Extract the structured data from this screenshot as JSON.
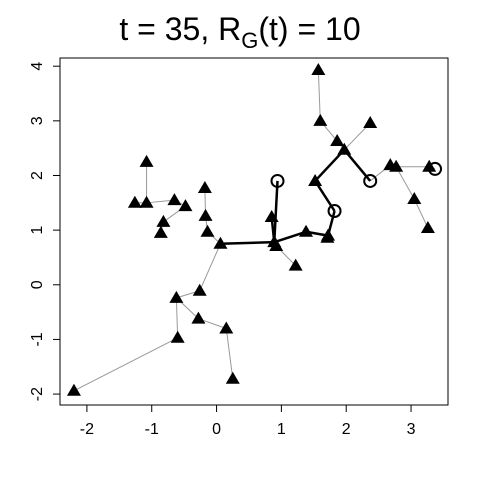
{
  "chart_data": {
    "type": "network",
    "title_parts": [
      "t = 35, R",
      "G",
      "(t) = 10"
    ],
    "x": [
      1.57,
      1.6,
      2.37,
      1.86,
      1.97,
      -1.08,
      2.68,
      2.77,
      3.28,
      1.52,
      -0.18,
      -1.26,
      -1.08,
      -0.65,
      -0.48,
      3.05,
      -0.82,
      -0.86,
      -0.17,
      -0.14,
      0.85,
      3.26,
      1.38,
      1.72,
      1.71,
      0.06,
      0.89,
      0.92,
      1.22,
      -0.62,
      -0.26,
      -0.28,
      0.15,
      -0.6,
      0.25,
      -2.2,
      0.94,
      1.82,
      2.37,
      3.37
    ],
    "y": [
      3.93,
      3.0,
      2.96,
      2.63,
      2.47,
      2.25,
      2.19,
      2.16,
      2.16,
      1.9,
      1.77,
      1.5,
      1.5,
      1.55,
      1.44,
      1.57,
      1.15,
      0.95,
      1.26,
      0.97,
      1.24,
      1.04,
      0.97,
      0.9,
      0.86,
      0.75,
      0.78,
      0.71,
      0.35,
      -0.24,
      -0.11,
      -0.62,
      -0.8,
      -0.97,
      -1.72,
      -1.94,
      1.9,
      1.35,
      1.9,
      2.12
    ],
    "markers": [
      "triangle",
      "triangle",
      "triangle",
      "triangle",
      "triangle",
      "triangle",
      "triangle",
      "triangle",
      "triangle",
      "triangle",
      "triangle",
      "triangle",
      "triangle",
      "triangle",
      "triangle",
      "triangle",
      "triangle",
      "triangle",
      "triangle",
      "triangle",
      "triangle",
      "triangle",
      "triangle",
      "triangle",
      "triangle",
      "triangle",
      "triangle",
      "triangle",
      "triangle",
      "triangle",
      "triangle",
      "triangle",
      "triangle",
      "triangle",
      "triangle",
      "triangle",
      "circle",
      "circle",
      "circle",
      "circle"
    ],
    "edges": [
      [
        0,
        1
      ],
      [
        1,
        3
      ],
      [
        3,
        4
      ],
      [
        2,
        4
      ],
      [
        6,
        7
      ],
      [
        7,
        8
      ],
      [
        8,
        39
      ],
      [
        7,
        15
      ],
      [
        15,
        21
      ],
      [
        24,
        23
      ],
      [
        26,
        27
      ],
      [
        27,
        28
      ],
      [
        5,
        12
      ],
      [
        11,
        12
      ],
      [
        12,
        13
      ],
      [
        13,
        14
      ],
      [
        14,
        16
      ],
      [
        16,
        17
      ],
      [
        10,
        18
      ],
      [
        18,
        19
      ],
      [
        19,
        25
      ],
      [
        25,
        30
      ],
      [
        30,
        29
      ],
      [
        29,
        31
      ],
      [
        31,
        32
      ],
      [
        32,
        34
      ],
      [
        29,
        33
      ],
      [
        33,
        35
      ],
      [
        6,
        38
      ]
    ],
    "bold_edges": [
      [
        36,
        26
      ],
      [
        26,
        25
      ],
      [
        26,
        20
      ],
      [
        26,
        22
      ],
      [
        22,
        23
      ],
      [
        23,
        37
      ],
      [
        37,
        9
      ],
      [
        9,
        4
      ],
      [
        4,
        38
      ]
    ],
    "edge_color": "#999999",
    "bold_color": "#000000",
    "marker_color": "#000000",
    "xlim": [
      -2.415,
      3.57
    ],
    "ylim": [
      -2.2,
      4.15
    ],
    "xticks": [
      -2,
      -1,
      0,
      1,
      2,
      3
    ],
    "yticks": [
      -2,
      -1,
      0,
      1,
      2,
      3,
      4
    ]
  }
}
